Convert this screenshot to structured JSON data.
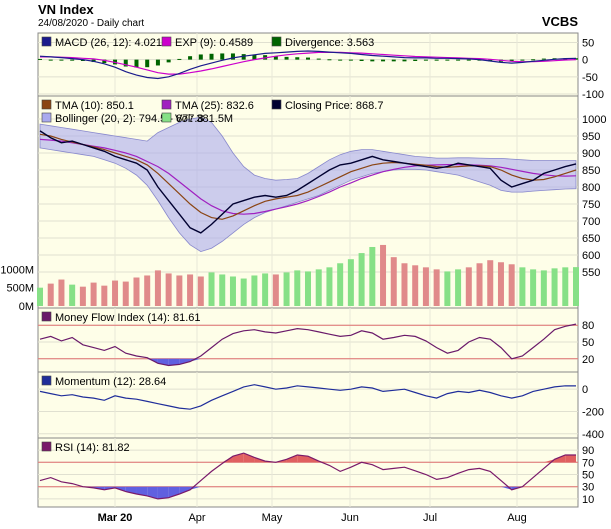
{
  "header": {
    "title": "VN Index",
    "subtitle": "24/08/2020 - Daily chart",
    "source": "VCBS"
  },
  "colors": {
    "panel_bg": "#fefee8",
    "plot_bg": "#dcdcf2",
    "macd": "#1b1b8c",
    "ema": "#cc00cc",
    "divergence": "#006400",
    "tma10": "#8b4513",
    "tma25": "#a020c0",
    "close": "#000030",
    "bollinger": "#aaaaee",
    "vol_up": "#86e086",
    "vol_down": "#e08a8a",
    "mfi": "#6a1a6a",
    "momentum": "#1f2d9a",
    "rsi": "#7a1a6a",
    "rsi_high": "#e06060",
    "rsi_low": "#6060e0",
    "ref_line": "#e07070",
    "grid": "#ffffff"
  },
  "x_axis": {
    "labels": [
      "Mar 20",
      "Apr",
      "May",
      "Jun",
      "Jul",
      "Aug"
    ]
  },
  "chart_data": [
    {
      "type": "line",
      "name": "macd-panel",
      "legend": [
        {
          "text": "MACD (26, 12): 4.021",
          "color": "#1b1b8c"
        },
        {
          "text": "EXP (9): 0.4589",
          "color": "#cc00cc"
        },
        {
          "text": "Divergence: 3.563",
          "color": "#006400"
        }
      ],
      "ylim": [
        -100,
        60
      ],
      "yticks": [
        "50",
        "0",
        "-50",
        "-100"
      ],
      "yticks_vals": [
        50,
        0,
        -50,
        -100
      ],
      "series": [
        {
          "role": "macd",
          "values": [
            10,
            8,
            6,
            3,
            0,
            -5,
            -12,
            -22,
            -35,
            -45,
            -52,
            -55,
            -50,
            -40,
            -28,
            -18,
            -10,
            -2,
            5,
            10,
            14,
            18,
            20,
            22,
            24,
            25,
            24,
            22,
            20,
            18,
            15,
            12,
            10,
            8,
            6,
            5,
            5,
            4,
            4,
            3,
            2,
            0,
            -4,
            -8,
            -10,
            -8,
            -5,
            -2,
            1,
            3,
            4
          ]
        },
        {
          "role": "exp",
          "values": [
            8,
            8,
            7,
            6,
            4,
            2,
            -2,
            -8,
            -15,
            -22,
            -30,
            -38,
            -42,
            -42,
            -38,
            -33,
            -27,
            -20,
            -13,
            -6,
            0,
            5,
            10,
            14,
            17,
            19,
            21,
            21,
            21,
            20,
            19,
            17,
            15,
            13,
            11,
            9,
            8,
            7,
            6,
            5,
            4,
            3,
            1,
            -2,
            -5,
            -6,
            -6,
            -5,
            -3,
            -1,
            0
          ]
        },
        {
          "role": "divergence",
          "values": [
            2,
            0,
            -1,
            -3,
            -4,
            -7,
            -10,
            -14,
            -20,
            -23,
            -22,
            -17,
            -8,
            2,
            10,
            15,
            17,
            18,
            18,
            16,
            14,
            13,
            10,
            8,
            7,
            6,
            3,
            1,
            -1,
            -2,
            -4,
            -5,
            -5,
            -5,
            -5,
            -4,
            -3,
            -3,
            -2,
            -2,
            -2,
            -3,
            -5,
            -6,
            -5,
            -2,
            1,
            3,
            4,
            4,
            4
          ]
        }
      ]
    },
    {
      "type": "line",
      "name": "price-panel",
      "legend": [
        {
          "text": "TMA (10): 850.1",
          "color": "#8b4513"
        },
        {
          "text": "TMA (25): 832.6",
          "color": "#a020c0"
        },
        {
          "text": "Closing Price: 868.7",
          "color": "#000030"
        },
        {
          "text": "Bollinger (20, 2): 794.5 - 877.8",
          "color": "#aaaaee"
        },
        {
          "text": "Vol: 381.5M",
          "color": "#86e086"
        }
      ],
      "ylim": [
        550,
        1050
      ],
      "yticks": [
        "1000",
        "950",
        "900",
        "850",
        "800",
        "750",
        "700",
        "650",
        "600",
        "550"
      ],
      "yticks_vals": [
        1000,
        950,
        900,
        850,
        800,
        750,
        700,
        650,
        600,
        550
      ],
      "vol_ticks": [
        "1000M",
        "500M",
        "0M"
      ],
      "vol_ticks_vals": [
        1000,
        500,
        0
      ],
      "vol_max": 1600,
      "series": [
        {
          "role": "close",
          "values": [
            965,
            945,
            930,
            935,
            925,
            915,
            905,
            890,
            880,
            870,
            850,
            800,
            760,
            720,
            680,
            665,
            690,
            720,
            750,
            760,
            770,
            775,
            770,
            775,
            790,
            810,
            830,
            850,
            865,
            870,
            880,
            890,
            880,
            875,
            870,
            865,
            860,
            855,
            860,
            870,
            865,
            860,
            855,
            820,
            800,
            810,
            820,
            840,
            850,
            860,
            868
          ]
        },
        {
          "role": "tma10",
          "values": [
            955,
            950,
            940,
            932,
            925,
            918,
            910,
            900,
            890,
            880,
            865,
            840,
            810,
            780,
            750,
            725,
            710,
            705,
            715,
            730,
            745,
            758,
            765,
            770,
            775,
            785,
            800,
            815,
            830,
            845,
            855,
            865,
            870,
            872,
            870,
            867,
            864,
            860,
            858,
            860,
            862,
            862,
            860,
            850,
            835,
            825,
            820,
            822,
            830,
            840,
            850
          ]
        },
        {
          "role": "tma25",
          "values": [
            940,
            938,
            935,
            930,
            925,
            920,
            915,
            908,
            900,
            890,
            875,
            860,
            840,
            815,
            790,
            765,
            745,
            730,
            722,
            720,
            722,
            728,
            735,
            742,
            750,
            760,
            772,
            785,
            800,
            812,
            825,
            835,
            845,
            852,
            858,
            862,
            864,
            865,
            866,
            866,
            865,
            864,
            862,
            858,
            852,
            846,
            840,
            836,
            833,
            832,
            833
          ]
        },
        {
          "role": "bb_upper",
          "values": [
            985,
            980,
            975,
            970,
            965,
            960,
            955,
            950,
            945,
            940,
            935,
            960,
            975,
            990,
            1000,
            1005,
            990,
            950,
            900,
            860,
            835,
            825,
            820,
            822,
            825,
            840,
            860,
            880,
            895,
            905,
            910,
            910,
            905,
            900,
            895,
            890,
            888,
            885,
            885,
            886,
            886,
            885,
            884,
            884,
            882,
            880,
            878,
            878,
            878,
            878,
            878
          ]
        },
        {
          "role": "bb_lower",
          "values": [
            915,
            910,
            905,
            900,
            895,
            890,
            880,
            870,
            855,
            835,
            805,
            760,
            710,
            665,
            630,
            610,
            620,
            640,
            665,
            690,
            710,
            725,
            735,
            745,
            755,
            765,
            775,
            790,
            805,
            820,
            830,
            840,
            845,
            850,
            852,
            852,
            850,
            845,
            840,
            835,
            825,
            815,
            805,
            790,
            785,
            785,
            788,
            790,
            792,
            794,
            795
          ]
        },
        {
          "role": "volume",
          "values": [
            180,
            220,
            260,
            210,
            190,
            230,
            200,
            250,
            240,
            280,
            300,
            350,
            320,
            300,
            310,
            290,
            330,
            310,
            290,
            270,
            300,
            320,
            310,
            330,
            350,
            340,
            360,
            380,
            420,
            460,
            520,
            580,
            600,
            480,
            420,
            400,
            380,
            360,
            340,
            360,
            380,
            420,
            450,
            430,
            410,
            380,
            360,
            350,
            370,
            380,
            382
          ]
        }
      ]
    },
    {
      "type": "line",
      "name": "mfi-panel",
      "legend": [
        {
          "text": "Money Flow Index (14): 81.61",
          "color": "#6a1a6a"
        }
      ],
      "ylim": [
        0,
        100
      ],
      "yticks": [
        "80",
        "50",
        "20"
      ],
      "yticks_vals": [
        80,
        50,
        20
      ],
      "ref_lines": [
        80,
        20
      ],
      "series": [
        {
          "role": "mfi",
          "values": [
            55,
            60,
            52,
            58,
            45,
            40,
            35,
            42,
            30,
            25,
            22,
            12,
            8,
            10,
            15,
            25,
            40,
            55,
            65,
            70,
            72,
            68,
            66,
            70,
            74,
            72,
            68,
            64,
            60,
            62,
            70,
            66,
            55,
            58,
            62,
            60,
            52,
            40,
            30,
            35,
            50,
            58,
            55,
            40,
            20,
            25,
            40,
            55,
            72,
            78,
            82
          ]
        }
      ]
    },
    {
      "type": "line",
      "name": "momentum-panel",
      "legend": [
        {
          "text": "Momentum (12): 28.64",
          "color": "#1f2d9a"
        }
      ],
      "ylim": [
        -420,
        100
      ],
      "yticks": [
        "0",
        "-200",
        "-400"
      ],
      "yticks_vals": [
        0,
        -200,
        -400
      ],
      "series": [
        {
          "role": "momentum",
          "values": [
            -20,
            -40,
            -60,
            -50,
            -70,
            -80,
            -100,
            -60,
            -80,
            -90,
            -110,
            -130,
            -150,
            -170,
            -180,
            -150,
            -100,
            -60,
            -20,
            20,
            40,
            20,
            0,
            10,
            30,
            20,
            10,
            0,
            -10,
            0,
            20,
            10,
            -20,
            -10,
            0,
            -30,
            -60,
            -80,
            -40,
            -20,
            -30,
            -10,
            -30,
            -60,
            -80,
            -60,
            -20,
            0,
            20,
            30,
            29
          ]
        }
      ]
    },
    {
      "type": "line",
      "name": "rsi-panel",
      "legend": [
        {
          "text": "RSI (14): 81.82",
          "color": "#7a1a6a"
        }
      ],
      "ylim": [
        0,
        100
      ],
      "yticks": [
        "90",
        "70",
        "50",
        "30",
        "10"
      ],
      "yticks_vals": [
        90,
        70,
        50,
        30,
        10
      ],
      "ref_lines": [
        70,
        30
      ],
      "series": [
        {
          "role": "rsi",
          "values": [
            40,
            45,
            38,
            35,
            30,
            28,
            25,
            28,
            22,
            18,
            15,
            10,
            12,
            18,
            25,
            40,
            55,
            68,
            80,
            85,
            78,
            72,
            70,
            75,
            82,
            80,
            72,
            65,
            55,
            62,
            70,
            66,
            58,
            60,
            62,
            56,
            50,
            42,
            45,
            52,
            58,
            60,
            55,
            40,
            25,
            30,
            45,
            60,
            75,
            82,
            82
          ]
        }
      ]
    }
  ]
}
